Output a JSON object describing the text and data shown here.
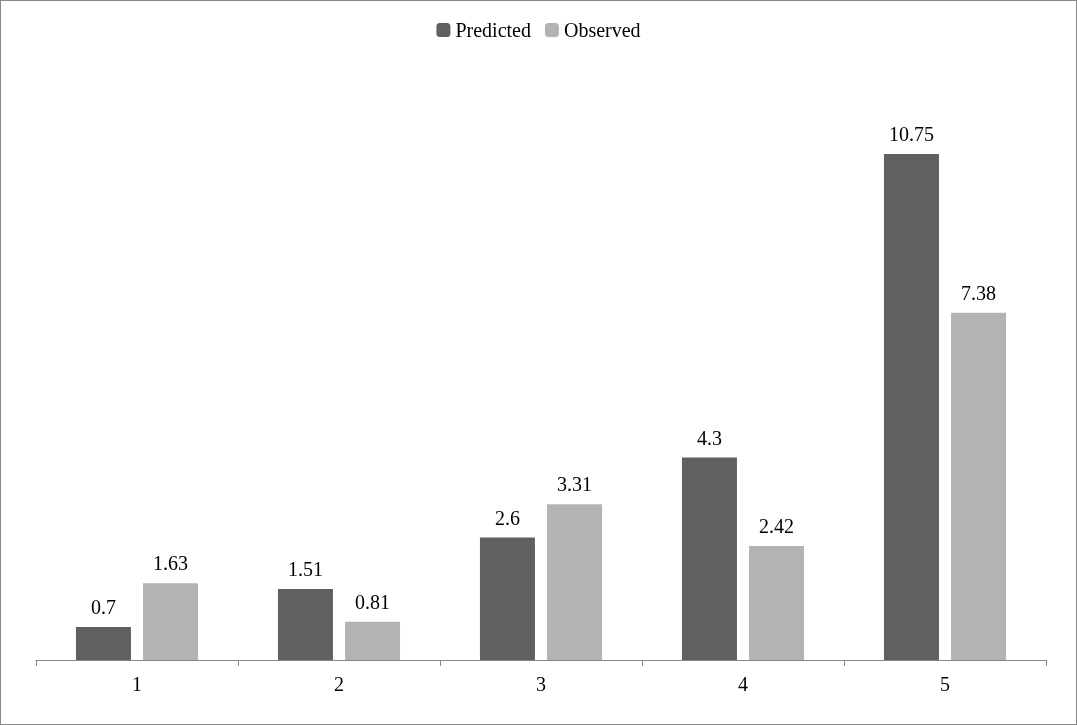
{
  "chart_data": {
    "type": "bar",
    "categories": [
      "1",
      "2",
      "3",
      "4",
      "5"
    ],
    "series": [
      {
        "name": "Predicted",
        "color": "#606060",
        "values": [
          0.7,
          1.51,
          2.6,
          4.3,
          10.75
        ]
      },
      {
        "name": "Observed",
        "color": "#b3b3b3",
        "values": [
          1.63,
          0.81,
          3.31,
          2.42,
          7.38
        ]
      }
    ],
    "data_labels": true,
    "legend": "top",
    "grid": false
  }
}
